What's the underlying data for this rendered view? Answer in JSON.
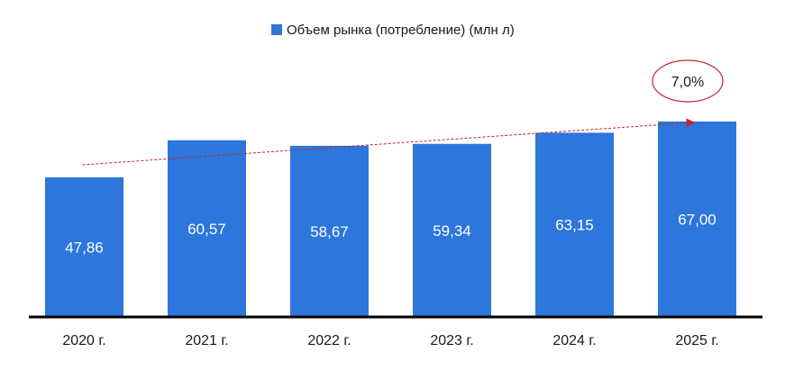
{
  "chart_data": {
    "type": "bar",
    "categories": [
      "2020 г.",
      "2021 г.",
      "2022 г.",
      "2023 г.",
      "2024 г.",
      "2025 г."
    ],
    "series": [
      {
        "name": "Объем рынка (потребление) (млн л)",
        "values": [
          47.86,
          60.57,
          58.67,
          59.34,
          63.15,
          67.0
        ],
        "labels": [
          "47,86",
          "60,57",
          "58,67",
          "59,34",
          "63,15",
          "67,00"
        ],
        "color": "#2c76dc"
      }
    ],
    "legend_position": "top-center",
    "ylim": [
      0,
      70
    ],
    "grid": false,
    "trendline": {
      "style": "dashed",
      "color": "#c0262d",
      "arrow": true
    },
    "annotation": {
      "text": "7,0%",
      "shape": "ellipse",
      "border_color": "#c0262d"
    }
  }
}
